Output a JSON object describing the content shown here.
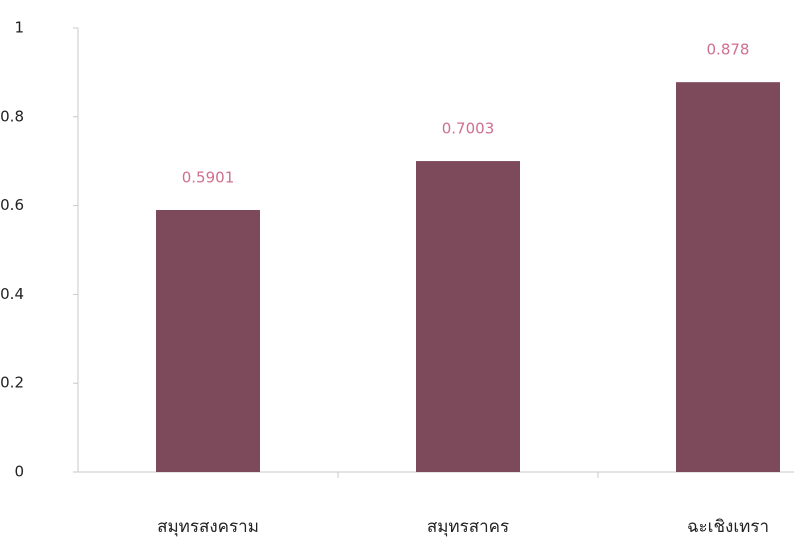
{
  "chart_data": {
    "type": "bar",
    "categories": [
      "สมุทรสงคราม",
      "สมุทรสาคร",
      "ฉะเชิงเทรา"
    ],
    "values": [
      0.5901,
      0.7003,
      0.878
    ],
    "color": "#7d4a5c",
    "label_color": "#d0708e",
    "ylim": [
      0,
      1
    ],
    "yticks": [
      0,
      0.2,
      0.4,
      0.6,
      0.8,
      1
    ],
    "grid": false
  }
}
